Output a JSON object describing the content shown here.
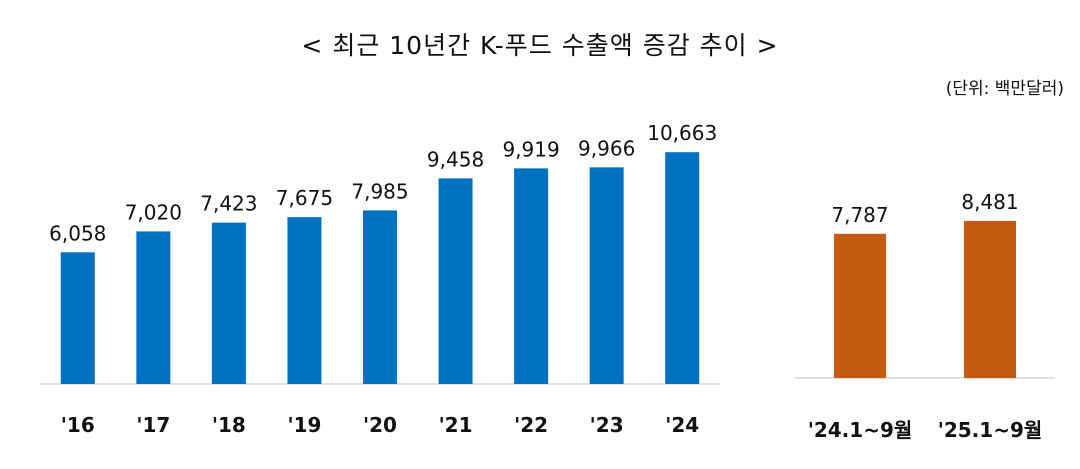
{
  "header": {
    "title": "< 최근 10년간 K-푸드 수출액 증감 추이 >",
    "unit": "(단위: 백만달러)"
  },
  "chart_data": [
    {
      "type": "bar",
      "categories": [
        "'16",
        "'17",
        "'18",
        "'19",
        "'20",
        "'21",
        "'22",
        "'23",
        "'24"
      ],
      "values": [
        6058,
        7020,
        7423,
        7675,
        7985,
        9458,
        9919,
        9966,
        10663
      ],
      "labels": [
        "6,058",
        "7,020",
        "7,423",
        "7,675",
        "7,985",
        "9,458",
        "9,919",
        "9,966",
        "10,663"
      ],
      "color": "#0070C0",
      "ylim": [
        0,
        11500
      ]
    },
    {
      "type": "bar",
      "categories": [
        "'24.1~9월",
        "'25.1~9월"
      ],
      "values": [
        7787,
        8481
      ],
      "labels": [
        "7,787",
        "8,481"
      ],
      "color": "#C55A11",
      "ylim": [
        0,
        13500
      ]
    }
  ]
}
